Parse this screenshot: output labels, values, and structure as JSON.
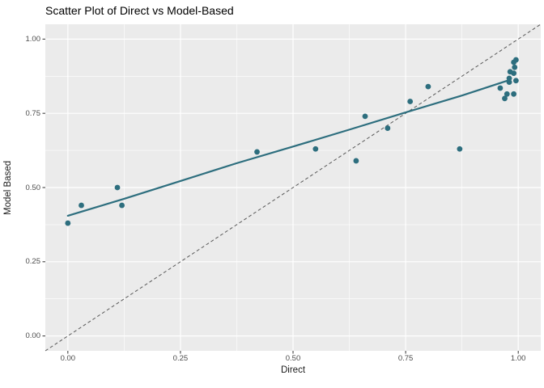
{
  "chart_data": {
    "type": "scatter",
    "title": "Scatter Plot of Direct vs Model-Based",
    "xlabel": "Direct",
    "ylabel": "Model Based",
    "xlim": [
      -0.05,
      1.05
    ],
    "ylim": [
      -0.05,
      1.05
    ],
    "x_ticks": [
      0.0,
      0.25,
      0.5,
      0.75,
      1.0
    ],
    "y_ticks": [
      0.0,
      0.25,
      0.5,
      0.75,
      1.0
    ],
    "minor_ticks": [
      0.125,
      0.375,
      0.625,
      0.875
    ],
    "grid": "white major and minor gridlines on gray panel",
    "legend": "none",
    "points": [
      [
        0.0,
        0.38
      ],
      [
        0.03,
        0.44
      ],
      [
        0.11,
        0.5
      ],
      [
        0.12,
        0.44
      ],
      [
        0.42,
        0.62
      ],
      [
        0.55,
        0.63
      ],
      [
        0.64,
        0.59
      ],
      [
        0.66,
        0.74
      ],
      [
        0.71,
        0.7
      ],
      [
        0.76,
        0.79
      ],
      [
        0.8,
        0.84
      ],
      [
        0.87,
        0.63
      ],
      [
        0.96,
        0.835
      ],
      [
        0.97,
        0.8
      ],
      [
        0.975,
        0.815
      ],
      [
        0.99,
        0.815
      ],
      [
        0.98,
        0.855
      ],
      [
        0.995,
        0.86
      ],
      [
        0.98,
        0.868
      ],
      [
        0.99,
        0.885
      ],
      [
        0.982,
        0.89
      ],
      [
        0.992,
        0.905
      ],
      [
        0.99,
        0.922
      ],
      [
        0.995,
        0.93
      ]
    ],
    "trend_line": [
      [
        0.0,
        0.405
      ],
      [
        0.125,
        0.462
      ],
      [
        0.25,
        0.522
      ],
      [
        0.375,
        0.582
      ],
      [
        0.5,
        0.638
      ],
      [
        0.625,
        0.695
      ],
      [
        0.75,
        0.753
      ],
      [
        0.875,
        0.81
      ],
      [
        0.98,
        0.862
      ]
    ],
    "identity_line": {
      "from": [
        -0.05,
        -0.05
      ],
      "to": [
        1.05,
        1.05
      ],
      "style": "dashed"
    },
    "colors": {
      "point": "#2d6e7e",
      "trend": "#2d6e7e",
      "panel_bg": "#ebebeb",
      "grid": "#ffffff",
      "identity": "#585858",
      "tick_mark": "#333333",
      "tick_label": "#4d4d4d",
      "title": "#000000"
    }
  }
}
